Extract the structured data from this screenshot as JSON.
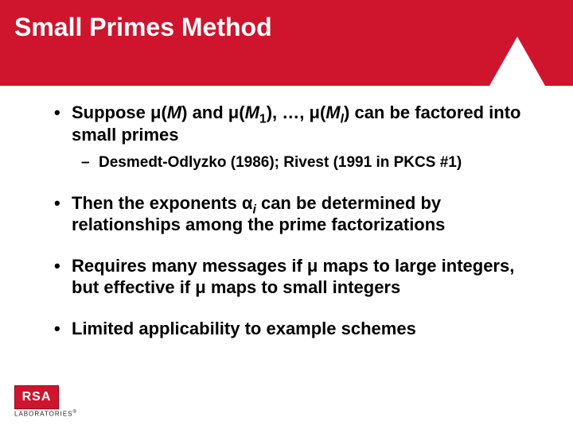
{
  "slide": {
    "title": "Small Primes Method",
    "title_fontsize": 32,
    "band_color": "#cf152d",
    "bullets": [
      {
        "html": "Suppose &mu;(<span class='ital'>M</span>) and &mu;(<span class='ital'>M</span><sub>1</sub>), &hellip;, &mu;(<span class='ital'>M</span><sub><span class='ital'>l</span></sub>) can be factored into small primes",
        "sub": [
          {
            "html": "Desmedt-Odlyzko (1986); Rivest (1991 in PKCS #1)"
          }
        ]
      },
      {
        "html": "Then the exponents &alpha;<sub><span class='ital'>i</span></sub> can be determined by relationships among the prime factorizations"
      },
      {
        "html": "Requires many messages if &mu; maps to large integers, but effective if &mu; maps to small integers"
      },
      {
        "html": "Limited applicability to example schemes"
      }
    ],
    "body_fontsize": 22,
    "sub_fontsize": 19
  },
  "logo": {
    "text": "RSA",
    "subtext": "LABORATORIES"
  }
}
